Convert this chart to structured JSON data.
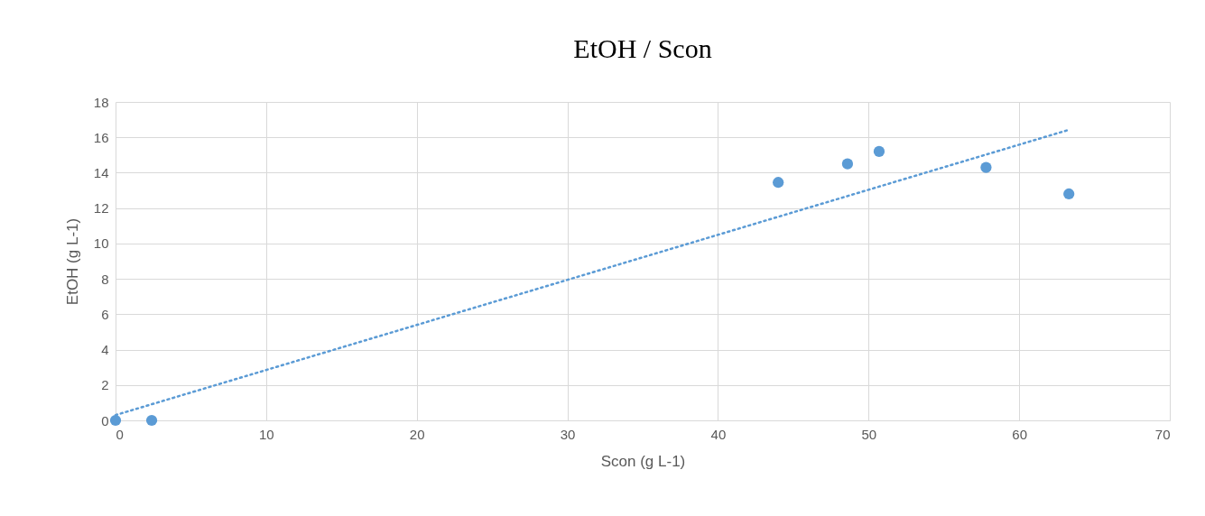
{
  "chart_data": {
    "type": "scatter",
    "title": "EtOH / Scon",
    "xlabel": "Scon (g L-1)",
    "ylabel": "EtOH (g L-1)",
    "x": [
      0,
      2.4,
      44.0,
      48.6,
      50.7,
      57.8,
      63.3
    ],
    "series": [
      {
        "color": "#5b9bd5",
        "values": [
          0,
          0,
          13.45,
          14.5,
          15.2,
          14.3,
          12.8
        ],
        "marker": "circle"
      },
      {
        "type": "line",
        "color": "#5b9bd5",
        "x": [
          0,
          63.2
        ],
        "values": [
          0.3,
          16.4
        ],
        "line_style": "dotted"
      }
    ],
    "xlim": [
      0,
      70
    ],
    "xticks": [
      0,
      10,
      20,
      30,
      40,
      50,
      60,
      70
    ],
    "ylim": [
      0,
      18
    ],
    "yticks": [
      0,
      2,
      4,
      6,
      8,
      10,
      12,
      14,
      16,
      18
    ],
    "grid": true
  }
}
